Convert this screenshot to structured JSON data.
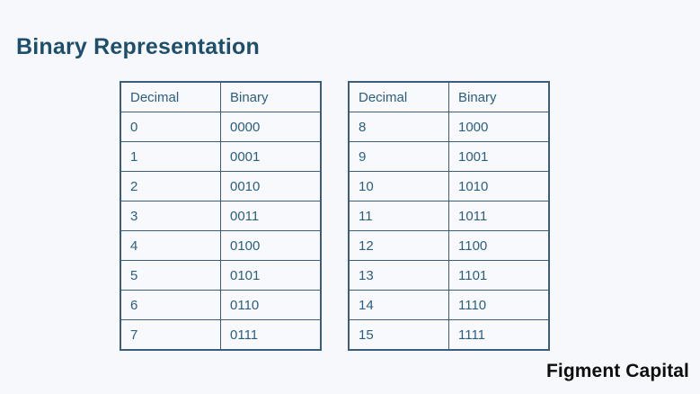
{
  "title": "Binary Representation",
  "tables": [
    {
      "headers": [
        "Decimal",
        "Binary"
      ],
      "rows": [
        [
          "0",
          "0000"
        ],
        [
          "1",
          "0001"
        ],
        [
          "2",
          "0010"
        ],
        [
          "3",
          "0011"
        ],
        [
          "4",
          "0100"
        ],
        [
          "5",
          "0101"
        ],
        [
          "6",
          "0110"
        ],
        [
          "7",
          "0111"
        ]
      ]
    },
    {
      "headers": [
        "Decimal",
        "Binary"
      ],
      "rows": [
        [
          "8",
          "1000"
        ],
        [
          "9",
          "1001"
        ],
        [
          "10",
          "1010"
        ],
        [
          "11",
          "1011"
        ],
        [
          "12",
          "1100"
        ],
        [
          "13",
          "1101"
        ],
        [
          "14",
          "1110"
        ],
        [
          "15",
          "1111"
        ]
      ]
    }
  ],
  "logo": {
    "text": "Figment Capital"
  },
  "colors": {
    "background": "#f7f8fb",
    "title_text": "#1d4e6b",
    "table_text": "#2d5e7e",
    "table_border": "#3a5d7a",
    "logo_text": "#0d0d0d"
  }
}
